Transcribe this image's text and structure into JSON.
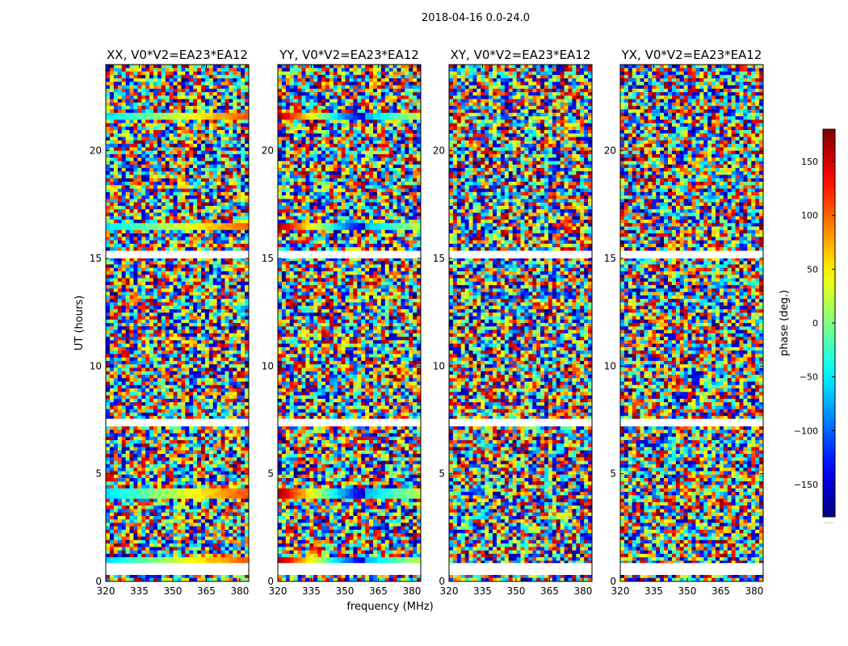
{
  "suptitle": "2018-04-16 0.0-24.0",
  "chart_data": {
    "type": "heatmap",
    "title": "2018-04-16 0.0-24.0",
    "xlabel": "frequency (MHz)",
    "ylabel": "UT (hours)",
    "xlim": [
      320,
      384
    ],
    "ylim": [
      0,
      24
    ],
    "xticks": [
      320,
      335,
      350,
      365,
      380
    ],
    "yticks": [
      0,
      5,
      10,
      15,
      20
    ],
    "panels": [
      {
        "title": "XX, V0*V2=EA23*EA12",
        "polarization": "XX"
      },
      {
        "title": "YY, V0*V2=EA23*EA12",
        "polarization": "YY"
      },
      {
        "title": "XY, V0*V2=EA23*EA12",
        "polarization": "XY"
      },
      {
        "title": "YX, V0*V2=EA23*EA12",
        "polarization": "YX"
      }
    ],
    "colorbar": {
      "label": "phase (deg.)",
      "colormap": "jet",
      "range": [
        -180,
        180
      ],
      "ticks": [
        -150,
        -100,
        -50,
        0,
        50,
        100,
        150
      ],
      "tick_labels": [
        "−150",
        "−100",
        "−50",
        "0",
        "50",
        "100",
        "150"
      ],
      "footer": "....."
    },
    "gaps_ut_hours": [
      [
        0.3,
        0.85
      ],
      [
        7.25,
        7.55
      ],
      [
        15.0,
        15.35
      ]
    ],
    "calibrator_scans_ut_hours": [
      0.9,
      4.1,
      16.45,
      21.6
    ]
  }
}
